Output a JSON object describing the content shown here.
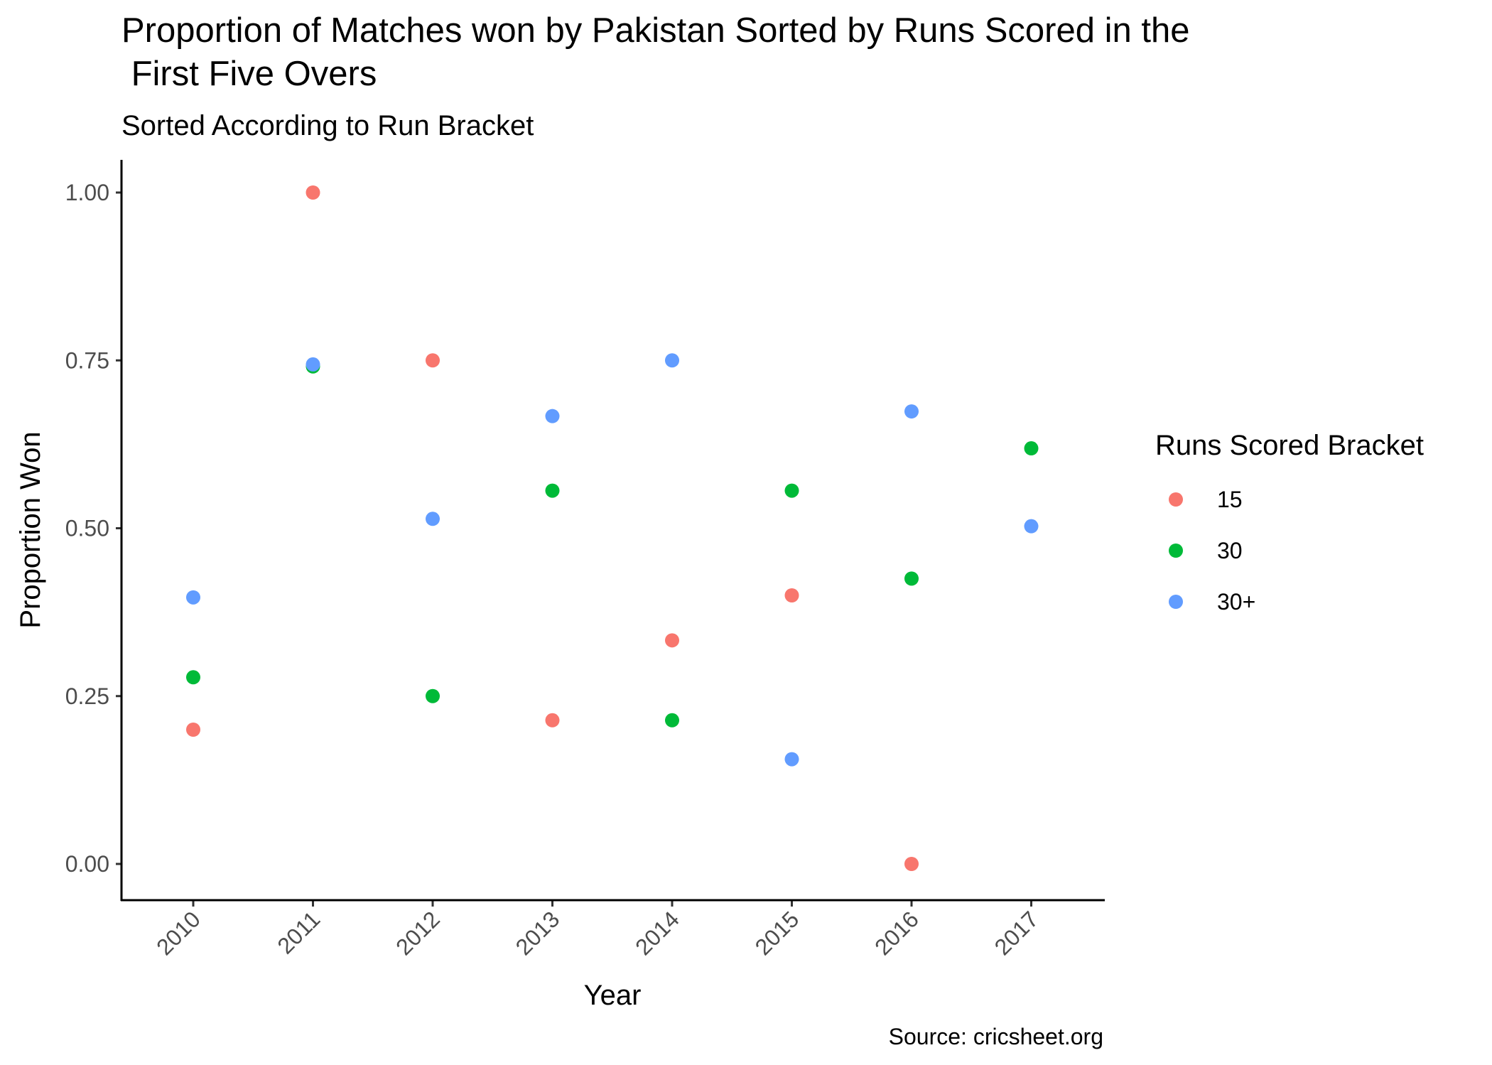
{
  "chart_data": {
    "type": "scatter",
    "title_lines": [
      "Proportion of Matches won by Pakistan Sorted by Runs Scored in the",
      " First Five Overs"
    ],
    "subtitle": "Sorted According to Run Bracket",
    "xlabel": "Year",
    "ylabel": "Proportion Won",
    "caption": "Source: cricsheet.org",
    "categories": [
      "2010",
      "2011",
      "2012",
      "2013",
      "2014",
      "2015",
      "2016",
      "2017"
    ],
    "ylim": [
      -0.05,
      1.05
    ],
    "yticks": [
      0.0,
      0.25,
      0.5,
      0.75,
      1.0
    ],
    "ytick_labels": [
      "0.00",
      "0.25",
      "0.50",
      "0.75",
      "1.00"
    ],
    "grid": false,
    "legend": {
      "title": "Runs Scored Bracket",
      "position": "right"
    },
    "series": [
      {
        "name": "15",
        "color": "#F8766D",
        "points": [
          {
            "x": "2010",
            "y": 0.2
          },
          {
            "x": "2011",
            "y": 1.0
          },
          {
            "x": "2012",
            "y": 0.75
          },
          {
            "x": "2013",
            "y": 0.214
          },
          {
            "x": "2014",
            "y": 0.333
          },
          {
            "x": "2015",
            "y": 0.4
          },
          {
            "x": "2016",
            "y": 0.0
          }
        ]
      },
      {
        "name": "30",
        "color": "#00BA38",
        "points": [
          {
            "x": "2010",
            "y": 0.278
          },
          {
            "x": "2011",
            "y": 0.741
          },
          {
            "x": "2012",
            "y": 0.25
          },
          {
            "x": "2013",
            "y": 0.556
          },
          {
            "x": "2014",
            "y": 0.214
          },
          {
            "x": "2015",
            "y": 0.556
          },
          {
            "x": "2016",
            "y": 0.425
          },
          {
            "x": "2017",
            "y": 0.619
          }
        ]
      },
      {
        "name": "30+",
        "color": "#619CFF",
        "points": [
          {
            "x": "2010",
            "y": 0.397
          },
          {
            "x": "2011",
            "y": 0.744
          },
          {
            "x": "2012",
            "y": 0.514
          },
          {
            "x": "2013",
            "y": 0.667
          },
          {
            "x": "2014",
            "y": 0.75
          },
          {
            "x": "2015",
            "y": 0.156
          },
          {
            "x": "2016",
            "y": 0.674
          },
          {
            "x": "2017",
            "y": 0.503
          }
        ]
      }
    ]
  }
}
